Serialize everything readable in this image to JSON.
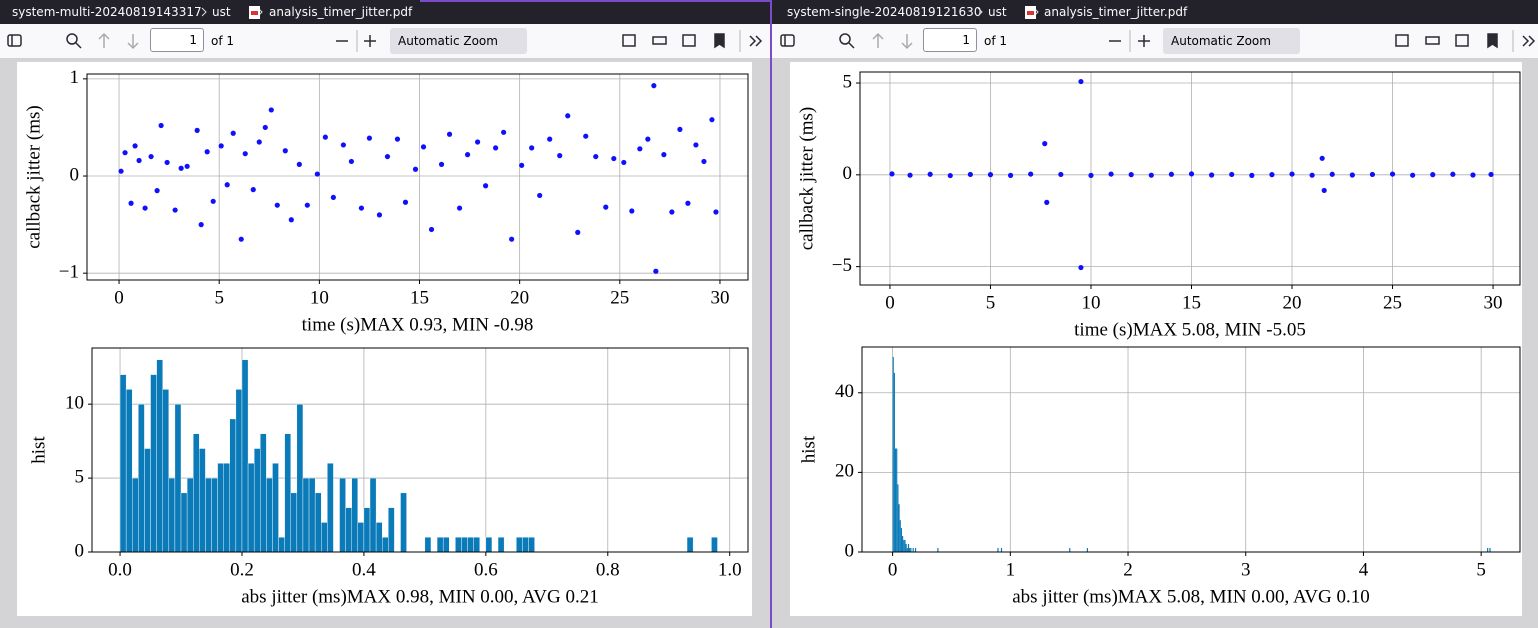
{
  "panes": [
    {
      "path": [
        "system-multi-20240819143317",
        "ust",
        "analysis_timer_jitter.pdf"
      ],
      "page": 1,
      "page_count": "of 1",
      "zoom": "Automatic Zoom"
    },
    {
      "path": [
        "system-single-20240819121630",
        "ust",
        "analysis_timer_jitter.pdf"
      ],
      "page": 1,
      "page_count": "of 1",
      "zoom": "Automatic Zoom"
    }
  ],
  "chart_data": [
    {
      "type": "scatter",
      "x_label": "time (s)MAX 0.93, MIN -0.98",
      "y_label": "callback jitter (ms)",
      "color": "#1010ff",
      "grid": true,
      "x": [
        0.1,
        0.3,
        0.6,
        0.8,
        1.0,
        1.3,
        1.6,
        1.9,
        2.1,
        2.4,
        2.8,
        3.1,
        3.4,
        3.9,
        4.1,
        4.4,
        4.7,
        5.1,
        5.4,
        5.7,
        6.1,
        6.3,
        6.7,
        7.0,
        7.3,
        7.6,
        7.9,
        8.3,
        8.6,
        9.0,
        9.4,
        9.9,
        10.3,
        10.7,
        11.2,
        11.6,
        12.1,
        12.5,
        13.0,
        13.4,
        13.9,
        14.3,
        14.8,
        15.2,
        15.6,
        16.1,
        16.5,
        17.0,
        17.4,
        17.9,
        18.3,
        18.8,
        19.2,
        19.6,
        20.1,
        20.6,
        21.0,
        21.5,
        22.0,
        22.4,
        22.9,
        23.3,
        23.8,
        24.3,
        24.7,
        25.2,
        25.6,
        26.0,
        26.4,
        26.7,
        26.8,
        27.2,
        27.6,
        28.0,
        28.4,
        28.8,
        29.2,
        29.6,
        29.8
      ],
      "values": [
        0.05,
        0.24,
        -0.28,
        0.31,
        0.16,
        -0.33,
        0.2,
        -0.15,
        0.52,
        0.14,
        -0.35,
        0.08,
        0.1,
        0.47,
        -0.5,
        0.25,
        -0.26,
        0.31,
        -0.09,
        0.44,
        -0.65,
        0.23,
        -0.14,
        0.35,
        0.5,
        0.68,
        -0.3,
        0.26,
        -0.45,
        0.12,
        -0.3,
        0.02,
        0.4,
        -0.22,
        0.32,
        0.15,
        -0.33,
        0.39,
        -0.4,
        0.2,
        0.38,
        -0.27,
        0.07,
        0.3,
        -0.55,
        0.12,
        0.43,
        -0.33,
        0.22,
        0.35,
        -0.1,
        0.29,
        0.45,
        -0.65,
        0.11,
        0.29,
        -0.2,
        0.38,
        0.21,
        0.62,
        -0.58,
        0.41,
        0.2,
        -0.32,
        0.18,
        0.14,
        -0.36,
        0.28,
        0.38,
        0.93,
        -0.98,
        0.22,
        -0.37,
        0.48,
        -0.28,
        0.32,
        0.15,
        0.58,
        -0.37
      ],
      "xlim": [
        -1.6,
        31.4
      ],
      "ylim": [
        -1.07,
        1.05
      ],
      "xticks": [
        0,
        5,
        10,
        15,
        20,
        25,
        30
      ],
      "yticks": [
        {
          "value": -1,
          "label": "−1"
        },
        0,
        1
      ]
    },
    {
      "type": "histogram",
      "x_label": "abs jitter (ms)MAX 0.98, MIN 0.00, AVG 0.21",
      "y_label": "hist",
      "color": "#0a7ab8",
      "grid": true,
      "bins": [
        0,
        0.01,
        0.02,
        0.03,
        0.04,
        0.05,
        0.06,
        0.07,
        0.08,
        0.09,
        0.1,
        0.11,
        0.12,
        0.13,
        0.14,
        0.15,
        0.16,
        0.17,
        0.18,
        0.19,
        0.2,
        0.21,
        0.22,
        0.23,
        0.24,
        0.25,
        0.26,
        0.27,
        0.28,
        0.29,
        0.3,
        0.31,
        0.32,
        0.33,
        0.34,
        0.35,
        0.36,
        0.37,
        0.38,
        0.39,
        0.4,
        0.41,
        0.42,
        0.43,
        0.44,
        0.45,
        0.46,
        0.47,
        0.48,
        0.49,
        0.5,
        0.51,
        0.52,
        0.53,
        0.54,
        0.55,
        0.56,
        0.57,
        0.58,
        0.59,
        0.6,
        0.61,
        0.62,
        0.63,
        0.64,
        0.65,
        0.66,
        0.67,
        0.68,
        0.69,
        0.7,
        0.71,
        0.72,
        0.73,
        0.74,
        0.75,
        0.76,
        0.77,
        0.78,
        0.79,
        0.8,
        0.81,
        0.82,
        0.83,
        0.84,
        0.85,
        0.86,
        0.87,
        0.88,
        0.89,
        0.9,
        0.91,
        0.92,
        0.93,
        0.94,
        0.95,
        0.96,
        0.97,
        0.98
      ],
      "values": [
        12,
        11,
        5,
        10,
        7,
        12,
        13,
        11,
        5,
        10,
        4,
        5,
        8,
        7,
        5,
        5,
        6,
        6,
        9,
        11,
        13,
        6,
        7,
        8,
        5,
        6,
        1,
        8,
        4,
        10,
        5,
        5,
        4,
        2,
        6,
        0,
        5,
        3,
        5,
        2,
        3,
        5,
        2,
        1,
        3,
        0,
        4,
        0,
        0,
        0,
        1,
        0,
        1,
        1,
        0,
        1,
        1,
        1,
        1,
        0,
        1,
        0,
        1,
        0,
        0,
        1,
        1,
        1,
        0,
        0,
        0,
        0,
        0,
        0,
        0,
        0,
        0,
        0,
        0,
        0,
        0,
        0,
        0,
        0,
        0,
        0,
        0,
        0,
        0,
        0,
        0,
        0,
        0,
        1,
        0,
        0,
        0,
        1
      ],
      "xlim": [
        -0.046,
        1.03
      ],
      "ylim": [
        0,
        13.8
      ],
      "xticks": [
        {
          "value": 0,
          "label": "0.0"
        },
        0.2,
        0.4,
        0.6,
        0.8,
        {
          "value": 1,
          "label": "1.0"
        }
      ],
      "yticks": [
        0,
        5,
        10
      ]
    },
    {
      "type": "scatter",
      "x_label": "time (s)MAX 5.08, MIN -5.05",
      "y_label": "callback jitter (ms)",
      "color": "#1010ff",
      "grid": true,
      "x": [
        0.1,
        1,
        2,
        3,
        4,
        5,
        6,
        7,
        7.7,
        7.8,
        8.5,
        9.5,
        9.5,
        10,
        11,
        12,
        13,
        14,
        15,
        16,
        17,
        18,
        19,
        20,
        21,
        21.5,
        21.6,
        22,
        23,
        24,
        25,
        26,
        27,
        28,
        29,
        29.9
      ],
      "values": [
        0.05,
        -0.02,
        0.03,
        -0.04,
        0.02,
        0.01,
        -0.03,
        0.04,
        1.7,
        -1.5,
        0.02,
        5.08,
        -5.05,
        -0.03,
        0.04,
        0.01,
        -0.02,
        0.03,
        0.05,
        -0.01,
        0.02,
        -0.03,
        0.01,
        0.04,
        -0.02,
        0.9,
        -0.85,
        0.03,
        -0.01,
        0.02,
        0.04,
        -0.02,
        0.01,
        0.03,
        -0.01,
        0.02
      ],
      "xlim": [
        -1.49,
        31.34
      ],
      "ylim": [
        -6.0,
        5.6
      ],
      "xticks": [
        0,
        5,
        10,
        15,
        20,
        25,
        30
      ],
      "yticks": [
        {
          "value": -5,
          "label": "−5"
        },
        0,
        5
      ]
    },
    {
      "type": "histogram",
      "x_label": "abs jitter (ms)MAX 5.08, MIN 0.00, AVG 0.10",
      "y_label": "hist",
      "color": "#0a7ab8",
      "grid": true,
      "bins": [
        0,
        0.01,
        0.02,
        0.03,
        0.04,
        0.05,
        0.06,
        0.07,
        0.08,
        0.09,
        0.1,
        0.11,
        0.12,
        0.13,
        0.14,
        0.15,
        0.16,
        0.17,
        0.18,
        0.19,
        0.2,
        0.38,
        0.39,
        0.89,
        0.9,
        0.92,
        0.93,
        1.5,
        1.51,
        1.65,
        1.66,
        5.05,
        5.06,
        5.07,
        5.08
      ],
      "values": [
        49,
        45,
        26,
        26,
        17,
        12,
        8,
        6,
        4,
        3,
        3,
        2,
        1,
        2,
        1,
        1,
        0,
        1,
        0,
        1,
        0,
        1,
        0,
        1,
        0,
        1,
        0,
        1,
        0,
        1,
        0,
        1,
        0,
        1
      ],
      "xlim": [
        -0.26,
        5.33
      ],
      "ylim": [
        0,
        51.5
      ],
      "xticks": [
        0,
        1,
        2,
        3,
        4,
        5
      ],
      "yticks": [
        0,
        20,
        40
      ]
    }
  ]
}
